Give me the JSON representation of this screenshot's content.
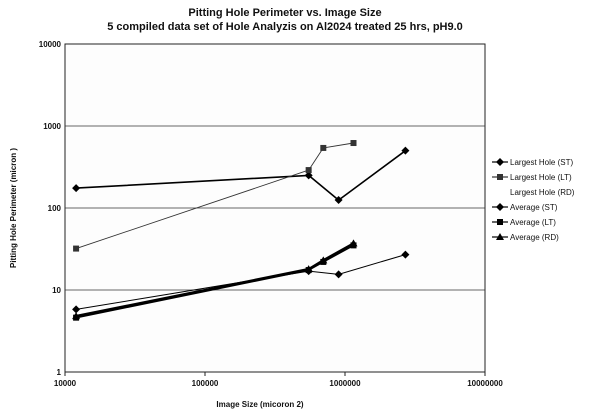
{
  "chart_data": {
    "type": "line",
    "title": "Pitting Hole Perimeter vs. Image Size",
    "subtitle": "5 compiled data set of Hole Analyzis on Al2024 treated 25 hrs, pH9.0",
    "xlabel": "Image Size (micoron 2)",
    "ylabel": "Pitting Hole Perimeter (micron )",
    "x_scale": "log",
    "y_scale": "log",
    "xlim": [
      10000,
      10000000
    ],
    "ylim": [
      1,
      10000
    ],
    "x_ticks": [
      "10000",
      "100000",
      "1000000",
      "10000000"
    ],
    "y_ticks": [
      "1",
      "10",
      "100",
      "1000",
      "10000"
    ],
    "grid": "horizontal major gridlines",
    "legend_position": "right",
    "series": [
      {
        "name": "Largest Hole (ST)",
        "marker": "diamond",
        "color": "#000000",
        "points": [
          [
            12000,
            175
          ],
          [
            550000,
            250
          ],
          [
            900000,
            125
          ],
          [
            2700000,
            500
          ]
        ]
      },
      {
        "name": "Largest Hole (LT)",
        "marker": "square",
        "color": "#333333",
        "points": [
          [
            12000,
            32
          ],
          [
            550000,
            290
          ],
          [
            700000,
            540
          ],
          [
            1150000,
            620
          ]
        ]
      },
      {
        "name": "Largest Hole (RD)",
        "marker": "none",
        "color": "#000000",
        "points": []
      },
      {
        "name": "Average (ST)",
        "marker": "diamond",
        "color": "#000000",
        "points": [
          [
            12000,
            5.8
          ],
          [
            550000,
            17
          ],
          [
            900000,
            15.5
          ],
          [
            2700000,
            27
          ]
        ]
      },
      {
        "name": "Average (LT)",
        "marker": "square",
        "color": "#000000",
        "points": [
          [
            12000,
            4.6
          ],
          [
            550000,
            17.5
          ],
          [
            700000,
            22
          ],
          [
            1150000,
            35
          ]
        ]
      },
      {
        "name": "Average (RD)",
        "marker": "triangle",
        "color": "#000000",
        "points": [
          [
            12000,
            4.8
          ],
          [
            550000,
            18
          ],
          [
            700000,
            23
          ],
          [
            1150000,
            37
          ]
        ]
      }
    ]
  }
}
